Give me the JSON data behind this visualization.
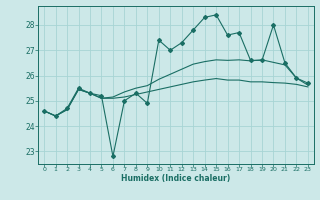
{
  "xlabel": "Humidex (Indice chaleur)",
  "ylabel": "",
  "bg_color": "#cce8e8",
  "grid_color": "#a8d4d4",
  "line_color": "#1a6e64",
  "xlim": [
    -0.5,
    23.5
  ],
  "ylim": [
    22.5,
    28.75
  ],
  "yticks": [
    23,
    24,
    25,
    26,
    27,
    28
  ],
  "xticks": [
    0,
    1,
    2,
    3,
    4,
    5,
    6,
    7,
    8,
    9,
    10,
    11,
    12,
    13,
    14,
    15,
    16,
    17,
    18,
    19,
    20,
    21,
    22,
    23
  ],
  "line1_x": [
    0,
    1,
    2,
    3,
    4,
    5,
    6,
    7,
    8,
    9,
    10,
    11,
    12,
    13,
    14,
    15,
    16,
    17,
    18,
    19,
    20,
    21,
    22,
    23
  ],
  "line1_y": [
    24.6,
    24.4,
    24.7,
    25.5,
    25.3,
    25.2,
    22.8,
    25.0,
    25.3,
    24.9,
    27.4,
    27.0,
    27.3,
    27.8,
    28.3,
    28.4,
    27.6,
    27.7,
    26.6,
    26.6,
    28.0,
    26.5,
    25.9,
    25.7
  ],
  "line2_x": [
    0,
    1,
    2,
    3,
    4,
    5,
    6,
    7,
    8,
    9,
    10,
    11,
    12,
    13,
    14,
    15,
    16,
    17,
    18,
    19,
    20,
    21,
    22,
    23
  ],
  "line2_y": [
    24.6,
    24.4,
    24.65,
    25.45,
    25.3,
    25.1,
    25.1,
    25.15,
    25.25,
    25.35,
    25.45,
    25.55,
    25.65,
    25.75,
    25.82,
    25.88,
    25.82,
    25.82,
    25.75,
    25.75,
    25.72,
    25.7,
    25.65,
    25.55
  ],
  "line3_x": [
    0,
    1,
    2,
    3,
    4,
    5,
    6,
    7,
    8,
    9,
    10,
    11,
    12,
    13,
    14,
    15,
    16,
    17,
    18,
    19,
    20,
    21,
    22,
    23
  ],
  "line3_y": [
    24.6,
    24.4,
    24.65,
    25.45,
    25.3,
    25.1,
    25.15,
    25.35,
    25.5,
    25.6,
    25.85,
    26.05,
    26.25,
    26.45,
    26.55,
    26.62,
    26.6,
    26.62,
    26.58,
    26.62,
    26.52,
    26.42,
    25.9,
    25.62
  ]
}
